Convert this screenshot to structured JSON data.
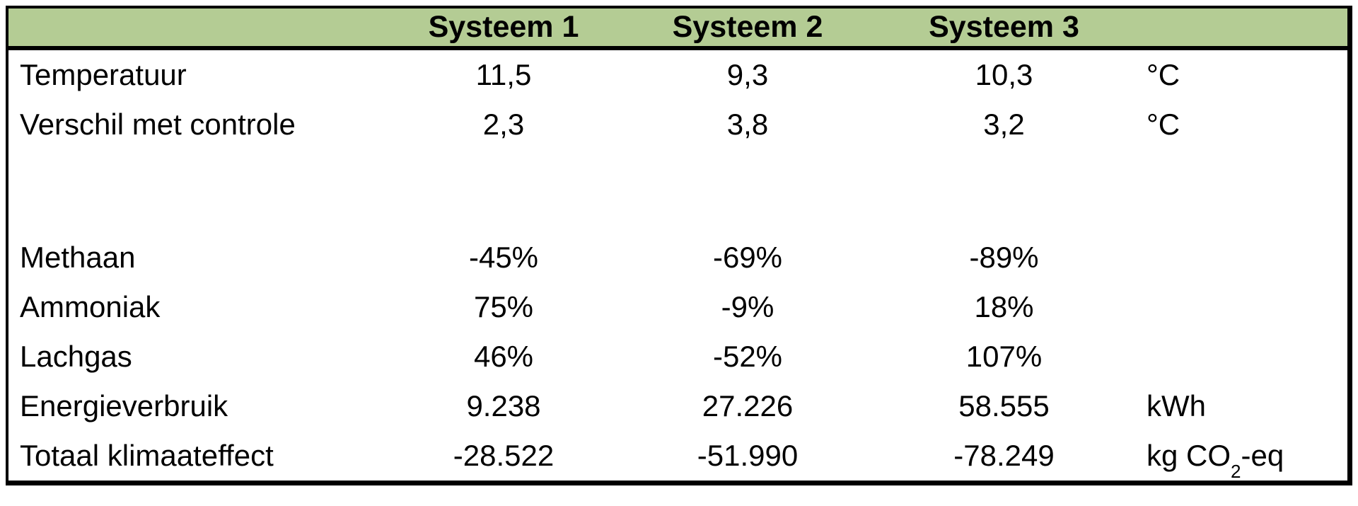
{
  "chart_data": {
    "type": "table",
    "title": "",
    "columns": [
      "Systeem 1",
      "Systeem 2",
      "Systeem 3"
    ],
    "colors": {
      "header_bg": "#B4CC94",
      "border": "#000000",
      "text": "#000000"
    },
    "layout": {
      "header_fill": true,
      "gridlines": false,
      "empty_row_after_index": 1
    },
    "rows": [
      {
        "label": "Temperatuur",
        "s1": "11,5",
        "s2": "9,3",
        "s3": "10,3",
        "unit": "°C"
      },
      {
        "label": "Verschil met controle",
        "s1": "2,3",
        "s2": "3,8",
        "s3": "3,2",
        "unit": "°C"
      },
      {
        "label": "Methaan",
        "s1": "-45%",
        "s2": "-69%",
        "s3": "-89%",
        "unit": ""
      },
      {
        "label": "Ammoniak",
        "s1": "75%",
        "s2": "-9%",
        "s3": "18%",
        "unit": ""
      },
      {
        "label": "Lachgas",
        "s1": "46%",
        "s2": "-52%",
        "s3": "107%",
        "unit": ""
      },
      {
        "label": "Energieverbruik",
        "s1": "9.238",
        "s2": "27.226",
        "s3": "58.555",
        "unit": "kWh"
      },
      {
        "label": "Totaal klimaateffect",
        "s1": "-28.522",
        "s2": "-51.990",
        "s3": "-78.249",
        "unit_main": "kg CO",
        "unit_sub": "2",
        "unit_tail": "-eq"
      }
    ]
  }
}
